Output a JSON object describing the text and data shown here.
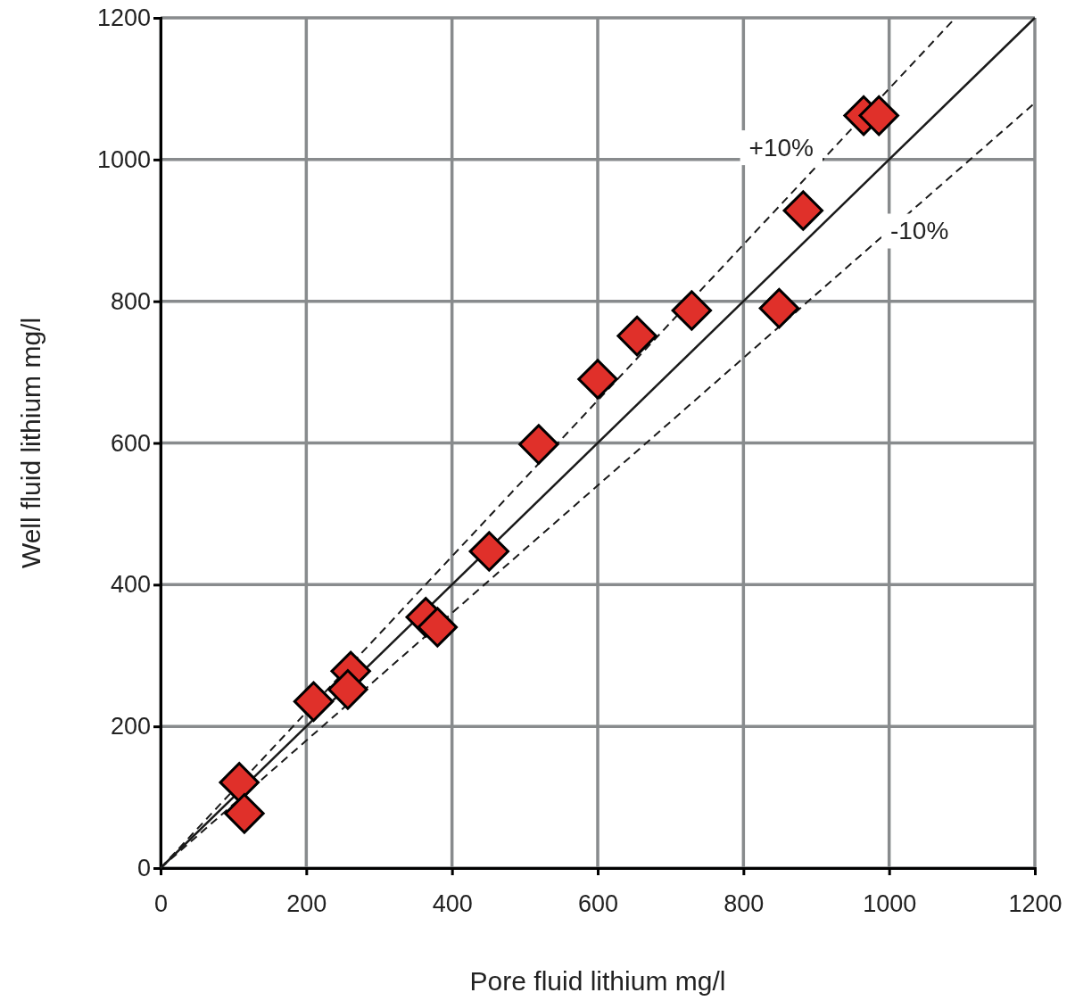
{
  "chart_data": {
    "type": "scatter",
    "xlabel": "Pore fluid lithium mg/l",
    "ylabel": "Well fluid lithium mg/l",
    "xlim": [
      0,
      1200
    ],
    "ylim": [
      0,
      1200
    ],
    "xticks": [
      0,
      200,
      400,
      600,
      800,
      1000,
      1200
    ],
    "yticks": [
      0,
      200,
      400,
      600,
      800,
      1000,
      1200
    ],
    "grid": true,
    "marker": "diamond",
    "series": [
      {
        "type": "line",
        "marker": "none",
        "color": "#1a1a1a",
        "line_style": "solid",
        "x": [
          0,
          1200
        ],
        "values": [
          0,
          1200
        ]
      },
      {
        "type": "line",
        "marker": "none",
        "color": "#1a1a1a",
        "line_style": "dashed",
        "x": [
          0,
          1090
        ],
        "values": [
          0,
          1199
        ]
      },
      {
        "type": "line",
        "marker": "none",
        "color": "#1a1a1a",
        "line_style": "dashed",
        "x": [
          0,
          1200
        ],
        "values": [
          0,
          1080
        ]
      },
      {
        "color": "#e0302a",
        "x": [
          108,
          115,
          210,
          261,
          257,
          364,
          380,
          451,
          519,
          600,
          654,
          729,
          849,
          882,
          965,
          986
        ],
        "values": [
          121,
          77,
          235,
          278,
          252,
          354,
          340,
          447,
          598,
          690,
          751,
          787,
          790,
          928,
          1062,
          1062
        ]
      }
    ],
    "annotations": [
      "+10%",
      "-10%"
    ]
  }
}
